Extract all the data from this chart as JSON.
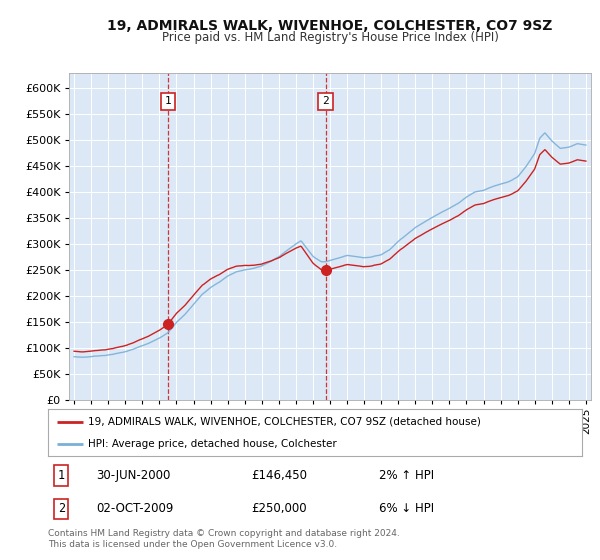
{
  "title": "19, ADMIRALS WALK, WIVENHOE, COLCHESTER, CO7 9SZ",
  "subtitle": "Price paid vs. HM Land Registry's House Price Index (HPI)",
  "ytick_values": [
    0,
    50000,
    100000,
    150000,
    200000,
    250000,
    300000,
    350000,
    400000,
    450000,
    500000,
    550000,
    600000
  ],
  "xlim_start": 1994.7,
  "xlim_end": 2025.3,
  "ylim_min": 0,
  "ylim_max": 630000,
  "bg_color": "#dce8f5",
  "grid_color": "#c8d8e8",
  "sale1_date": 2000.496,
  "sale1_price": 146450,
  "sale1_text": "30-JUN-2000",
  "sale1_amount": "£146,450",
  "sale1_hpi": "2% ↑ HPI",
  "sale2_date": 2009.748,
  "sale2_price": 250000,
  "sale2_text": "02-OCT-2009",
  "sale2_amount": "£250,000",
  "sale2_hpi": "6% ↓ HPI",
  "line1_color": "#cc2222",
  "line2_color": "#7ab0d8",
  "legend1_label": "19, ADMIRALS WALK, WIVENHOE, COLCHESTER, CO7 9SZ (detached house)",
  "legend2_label": "HPI: Average price, detached house, Colchester",
  "footer": "Contains HM Land Registry data © Crown copyright and database right 2024.\nThis data is licensed under the Open Government Licence v3.0.",
  "xtick_years": [
    1995,
    1996,
    1997,
    1998,
    1999,
    2000,
    2001,
    2002,
    2003,
    2004,
    2005,
    2006,
    2007,
    2008,
    2009,
    2010,
    2011,
    2012,
    2013,
    2014,
    2015,
    2016,
    2017,
    2018,
    2019,
    2020,
    2021,
    2022,
    2023,
    2024,
    2025
  ]
}
